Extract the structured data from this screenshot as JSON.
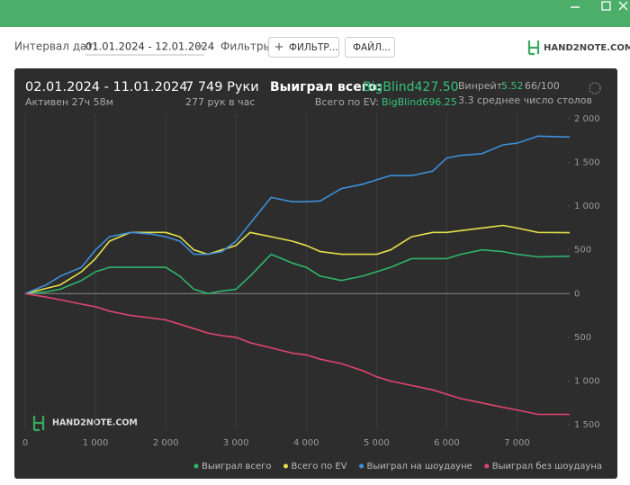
{
  "toolbar": {
    "date_label": "Интервал дат:",
    "date_range": "01.01.2024 - 12.01.2024",
    "filters_label": "Фильтры:",
    "filter_button": "ФИЛЬТР...",
    "file_button": "ФАЙЛ...",
    "logo": "HAND2NOTE.COM"
  },
  "summary": {
    "period": "02.01.2024 - 11.01.2024",
    "active": "Активен 27ч 58м",
    "hands": "7 749 Руки",
    "hands_per_hour": "277 рук в час",
    "won_label": "Выиграл всего:",
    "won_value": "BigBlind427.50",
    "ev_label": "Всего по EV:",
    "ev_value": "BigBlind696.25",
    "winrate_label": "Винрейт:",
    "winrate_value": "5.52",
    "winrate_sample": "66/100",
    "tables": "3.3 среднее число столов"
  },
  "chart_data": {
    "type": "line",
    "watermark": "HAND2NOTE.COM",
    "x": [
      0,
      300,
      500,
      800,
      1000,
      1200,
      1500,
      1800,
      2000,
      2200,
      2400,
      2600,
      2800,
      3000,
      3200,
      3500,
      3800,
      4000,
      4200,
      4500,
      4800,
      5000,
      5200,
      5500,
      5800,
      6000,
      6200,
      6500,
      6800,
      7000,
      7300,
      7749
    ],
    "series": [
      {
        "name": "Выиграл всего",
        "color": "#2db66b",
        "values": [
          0,
          20,
          50,
          150,
          250,
          300,
          300,
          300,
          300,
          200,
          50,
          0,
          30,
          50,
          200,
          450,
          350,
          300,
          200,
          150,
          200,
          250,
          300,
          400,
          400,
          400,
          450,
          500,
          480,
          450,
          420,
          427.5
        ]
      },
      {
        "name": "Всего по EV",
        "color": "#e6e04a",
        "values": [
          0,
          60,
          100,
          250,
          400,
          600,
          700,
          700,
          700,
          650,
          500,
          450,
          500,
          550,
          700,
          650,
          600,
          550,
          480,
          450,
          450,
          450,
          500,
          650,
          700,
          700,
          720,
          750,
          780,
          750,
          700,
          696.25
        ]
      },
      {
        "name": "Выиграл на шоудауне",
        "color": "#3d8fd9",
        "values": [
          0,
          100,
          200,
          300,
          500,
          650,
          700,
          680,
          650,
          600,
          450,
          450,
          480,
          600,
          800,
          1100,
          1050,
          1050,
          1060,
          1200,
          1250,
          1300,
          1350,
          1350,
          1400,
          1550,
          1580,
          1600,
          1700,
          1720,
          1800,
          1790
        ]
      },
      {
        "name": "Выиграл без шоудауна",
        "color": "#e0456e",
        "values": [
          0,
          -40,
          -70,
          -120,
          -150,
          -200,
          -250,
          -280,
          -300,
          -350,
          -400,
          -450,
          -480,
          -500,
          -560,
          -620,
          -680,
          -700,
          -750,
          -800,
          -880,
          -950,
          -1000,
          -1050,
          -1100,
          -1150,
          -1200,
          -1250,
          -1300,
          -1330,
          -1380,
          -1380
        ]
      }
    ],
    "xlim": [
      0,
      7749
    ],
    "ylim": [
      -1550,
      2050
    ],
    "xticks": [
      0,
      {
        "value": 1000,
        "label": "1 000"
      },
      {
        "value": 2000,
        "label": "2 000"
      },
      {
        "value": 3000,
        "label": "3 000"
      },
      {
        "value": 4000,
        "label": "4 000"
      },
      {
        "value": 5000,
        "label": "5 000"
      },
      {
        "value": 6000,
        "label": "6 000"
      },
      {
        "value": 7000,
        "label": "7 000"
      }
    ],
    "yticks": [
      {
        "value": 2000,
        "label": "2 000"
      },
      {
        "value": 1500,
        "label": "1 500"
      },
      {
        "value": 1000,
        "label": "1 000"
      },
      500,
      0,
      {
        "value": -500,
        "label": "500"
      },
      {
        "value": -1000,
        "label": "1 000"
      },
      {
        "value": -1500,
        "label": "1 500"
      }
    ],
    "grid": true,
    "legend": "bottom"
  }
}
